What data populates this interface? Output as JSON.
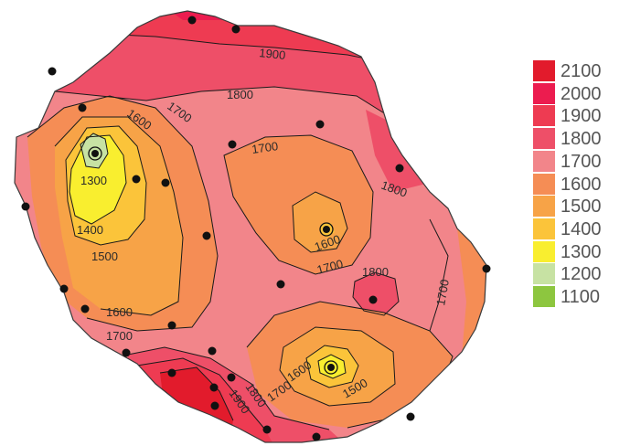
{
  "legend": {
    "items": [
      {
        "label": "2100",
        "color": "#e21b2c"
      },
      {
        "label": "2000",
        "color": "#ec1c4f"
      },
      {
        "label": "1900",
        "color": "#ee3b52"
      },
      {
        "label": "1800",
        "color": "#ee4f68"
      },
      {
        "label": "1700",
        "color": "#f2858a"
      },
      {
        "label": "1600",
        "color": "#f58d55"
      },
      {
        "label": "1500",
        "color": "#f7a347"
      },
      {
        "label": "1400",
        "color": "#fbc43a"
      },
      {
        "label": "1300",
        "color": "#f9ee2f"
      },
      {
        "label": "1200",
        "color": "#c7e2a3"
      },
      {
        "label": "1100",
        "color": "#8dc63f"
      }
    ]
  },
  "contour_labels": [
    "1900",
    "1800",
    "1600",
    "1700",
    "1300",
    "1400",
    "1500",
    "1700",
    "1600",
    "1700",
    "1800",
    "1600",
    "1700",
    "1800",
    "1700",
    "1600",
    "1700",
    "1600",
    "1500",
    "1700",
    "1800",
    "1900"
  ]
}
